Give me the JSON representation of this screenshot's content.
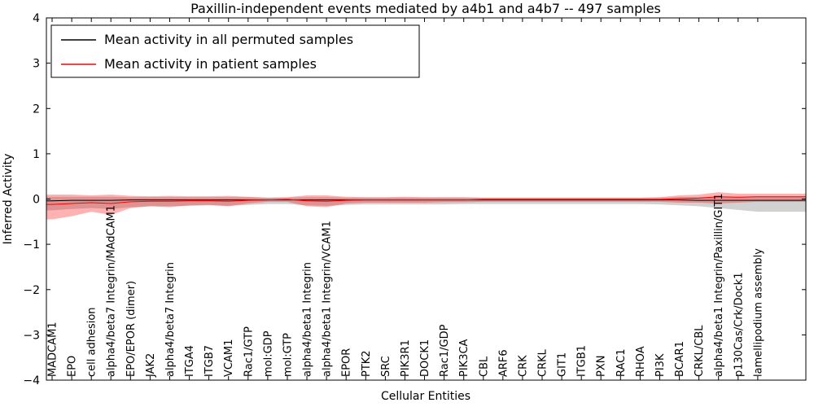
{
  "chart_data": {
    "type": "line",
    "title": "Paxillin-independent events mediated by a4b1 and a4b7 -- 497 samples",
    "xlabel": "Cellular Entities",
    "ylabel": "Inferred Activity",
    "ylim": [
      -4,
      4
    ],
    "yticks": [
      -4,
      -3,
      -2,
      -1,
      0,
      1,
      2,
      3,
      4
    ],
    "grid": false,
    "legend_position": "upper left",
    "categories": [
      "MADCAM1",
      "EPO",
      "cell adhesion",
      "alpha4/beta7 Integrin/MAdCAM1",
      "EPO/EPOR (dimer)",
      "JAK2",
      "alpha4/beta7 Integrin",
      "ITGA4",
      "ITGB7",
      "VCAM1",
      "Rac1/GTP",
      "mol:GDP",
      "mol:GTP",
      "alpha4/beta1 Integrin",
      "alpha4/beta1 Integrin/VCAM1",
      "EPOR",
      "PTK2",
      "SRC",
      "PIK3R1",
      "DOCK1",
      "Rac1/GDP",
      "PIK3CA",
      "CBL",
      "ARF6",
      "CRK",
      "CRKL",
      "GIT1",
      "ITGB1",
      "PXN",
      "RAC1",
      "RHOA",
      "PI3K",
      "BCAR1",
      "CRKL/CBL",
      "alpha4/beta1 Integrin/Paxillin/GIT1",
      "p130Cas/Crk/Dock1",
      "lamellipodium assembly"
    ],
    "series": [
      {
        "id": "permuted",
        "name": "Mean activity in all permuted samples",
        "color": "#000000",
        "band_color": "#999999",
        "band_opacity": 0.45,
        "values": [
          -0.04,
          -0.03,
          -0.03,
          -0.03,
          -0.02,
          -0.02,
          -0.02,
          -0.02,
          -0.02,
          -0.02,
          -0.02,
          -0.02,
          -0.02,
          -0.02,
          -0.02,
          -0.02,
          -0.02,
          -0.02,
          -0.02,
          -0.02,
          -0.02,
          -0.02,
          -0.02,
          -0.02,
          -0.02,
          -0.02,
          -0.02,
          -0.02,
          -0.02,
          -0.02,
          -0.02,
          -0.02,
          -0.02,
          -0.03,
          -0.03,
          -0.03,
          -0.03
        ],
        "band_low": [
          -0.25,
          -0.22,
          -0.2,
          -0.22,
          -0.18,
          -0.16,
          -0.16,
          -0.15,
          -0.14,
          -0.15,
          -0.13,
          -0.11,
          -0.11,
          -0.14,
          -0.15,
          -0.13,
          -0.12,
          -0.12,
          -0.12,
          -0.12,
          -0.12,
          -0.11,
          -0.11,
          -0.11,
          -0.11,
          -0.11,
          -0.11,
          -0.11,
          -0.11,
          -0.11,
          -0.11,
          -0.12,
          -0.14,
          -0.16,
          -0.2,
          -0.24,
          -0.28
        ],
        "band_high": [
          0.05,
          0.05,
          0.05,
          0.05,
          0.04,
          0.04,
          0.04,
          0.04,
          0.04,
          0.04,
          0.04,
          0.03,
          0.03,
          0.04,
          0.04,
          0.03,
          0.03,
          0.03,
          0.03,
          0.03,
          0.03,
          0.03,
          0.03,
          0.03,
          0.03,
          0.03,
          0.03,
          0.03,
          0.03,
          0.03,
          0.03,
          0.03,
          0.04,
          0.04,
          0.05,
          0.05,
          0.06
        ]
      },
      {
        "id": "patient",
        "name": "Mean activity in patient samples",
        "color": "#ff0000",
        "band_color": "#ff0000",
        "band_opacity": 0.3,
        "values": [
          -0.12,
          -0.1,
          -0.08,
          -0.1,
          -0.06,
          -0.05,
          -0.05,
          -0.04,
          -0.04,
          -0.05,
          -0.03,
          -0.02,
          -0.01,
          -0.04,
          -0.05,
          -0.03,
          -0.02,
          -0.02,
          -0.02,
          -0.02,
          -0.02,
          -0.02,
          -0.01,
          -0.01,
          -0.01,
          -0.01,
          -0.01,
          -0.01,
          -0.01,
          -0.01,
          -0.01,
          -0.01,
          0.01,
          0.02,
          0.05,
          0.04,
          0.05
        ],
        "band_low": [
          -0.45,
          -0.38,
          -0.28,
          -0.35,
          -0.2,
          -0.16,
          -0.18,
          -0.14,
          -0.13,
          -0.16,
          -0.1,
          -0.06,
          -0.06,
          -0.16,
          -0.18,
          -0.1,
          -0.08,
          -0.08,
          -0.08,
          -0.08,
          -0.07,
          -0.07,
          -0.06,
          -0.06,
          -0.06,
          -0.06,
          -0.06,
          -0.06,
          -0.06,
          -0.06,
          -0.06,
          -0.06,
          -0.08,
          -0.08,
          -0.1,
          -0.08,
          -0.06
        ],
        "band_high": [
          0.1,
          0.1,
          0.08,
          0.1,
          0.07,
          0.06,
          0.07,
          0.06,
          0.06,
          0.07,
          0.05,
          0.03,
          0.04,
          0.08,
          0.08,
          0.05,
          0.04,
          0.04,
          0.05,
          0.04,
          0.04,
          0.04,
          0.03,
          0.03,
          0.03,
          0.03,
          0.03,
          0.03,
          0.03,
          0.03,
          0.03,
          0.04,
          0.08,
          0.1,
          0.15,
          0.12,
          0.12
        ]
      }
    ]
  }
}
